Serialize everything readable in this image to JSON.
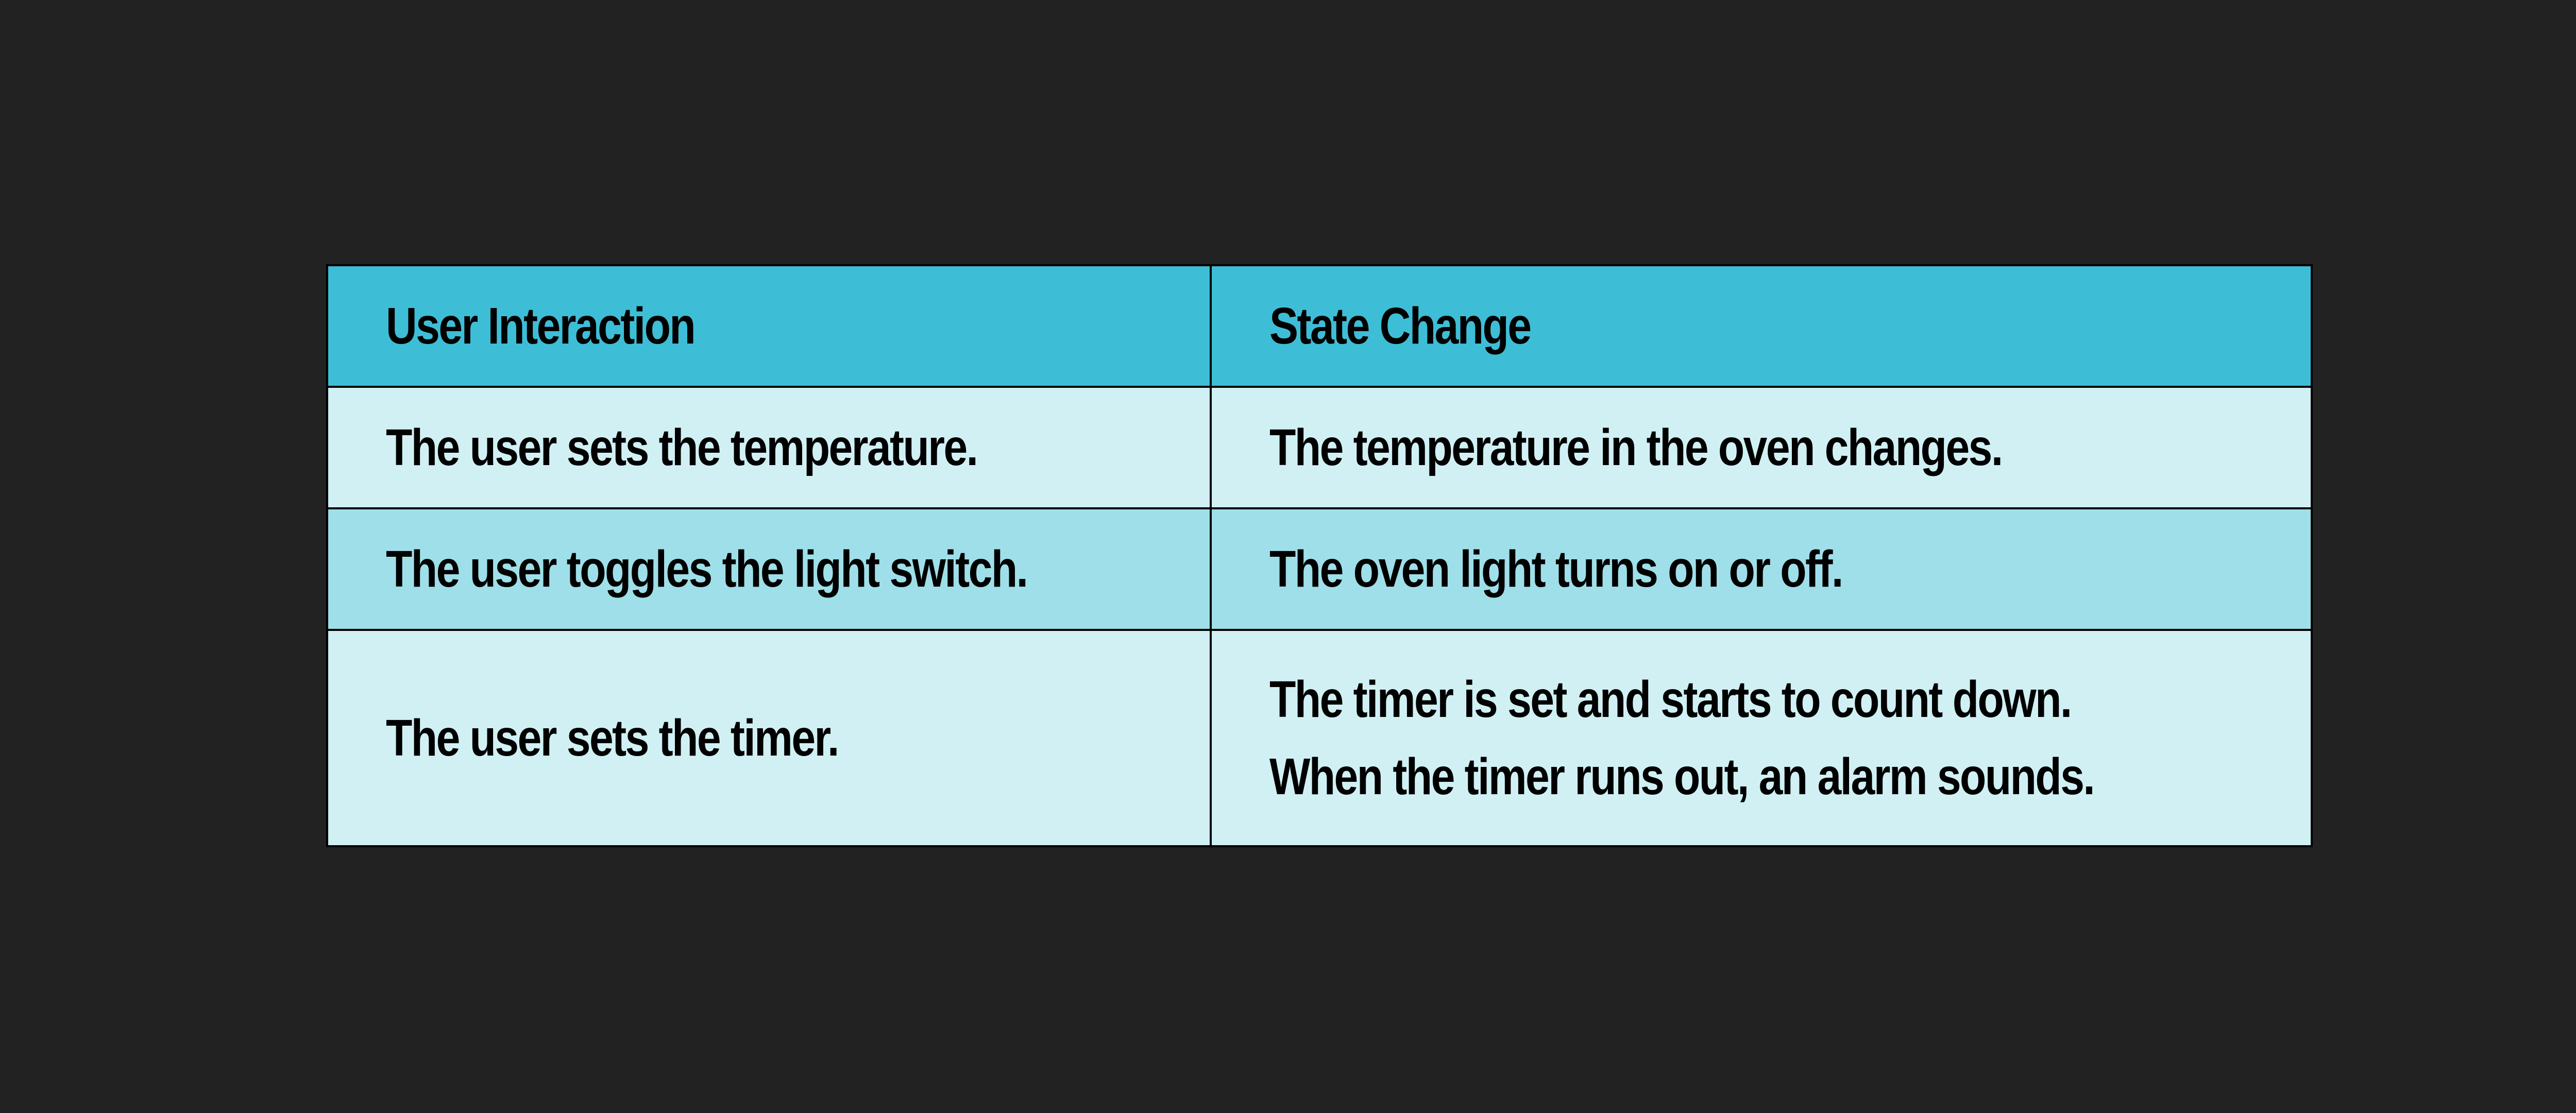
{
  "table": {
    "headers": [
      "User Interaction",
      "State Change"
    ],
    "rows": [
      {
        "interaction": "The user sets the temperature.",
        "change": [
          "The temperature in the oven changes."
        ]
      },
      {
        "interaction": "The user toggles the light switch.",
        "change": [
          "The oven light turns on or off."
        ]
      },
      {
        "interaction": "The user sets the timer.",
        "change": [
          "The timer is set and starts to count down.",
          "When the timer runs out, an alarm sounds."
        ]
      }
    ]
  },
  "colors": {
    "background": "#222222",
    "header": "#3dbed6",
    "row_light": "#d0f0f4",
    "row_mid": "#9fdfe9",
    "border": "#000000"
  }
}
